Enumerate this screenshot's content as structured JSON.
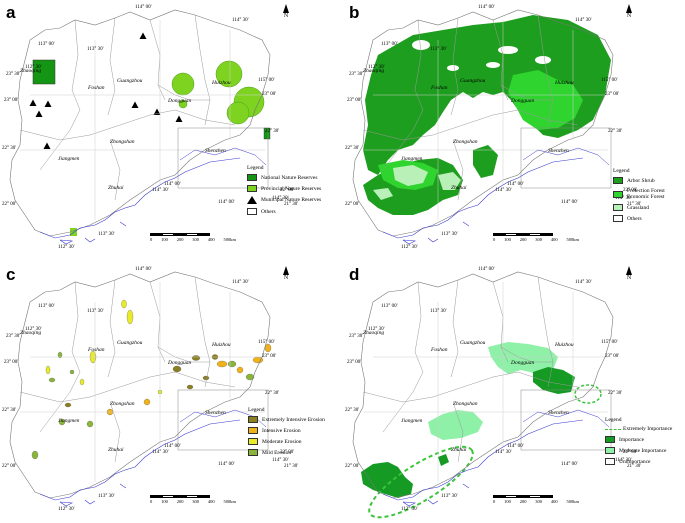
{
  "north": "N",
  "colors": {
    "national_reserve": "#149614",
    "provincial_reserve": "#7ed321",
    "arbor_shrub": "#1e9e1e",
    "protection_forest": "#2fd42f",
    "grassland": "#b8f0b8",
    "extreme_erosion": "#8b7f1f",
    "intensive_erosion": "#f0b21a",
    "moderate_erosion": "#e8ea2a",
    "mild_erosion": "#8bb53a",
    "importance": "#159a24",
    "moderate_importance": "#8ff0a8",
    "extreme_importance_line": "#3cc43c",
    "boundary": "#999999",
    "coastline": "#3a3ad0"
  },
  "scale_ticks": [
    "0",
    "100",
    "200",
    "300",
    "400",
    "500km"
  ],
  "panels": [
    {
      "label": "a",
      "cities": [
        "Zhaoqing",
        "Foshan",
        "Guangzhou",
        "Dongguan",
        "Huizhou",
        "Zhongshan",
        "Shenzhen",
        "Jiangmen",
        "Zhuhai"
      ],
      "coords": [
        "114° 00'",
        "113° 30'",
        "113° 00'",
        "112° 30'",
        "114° 30'",
        "115° 00'",
        "23° 30'",
        "23° 00'",
        "22° 30'",
        "22° 00'",
        "112° 30'",
        "113° 30'",
        "114° 00'",
        "114° 30'",
        "114° 30'",
        "114° 00'",
        "23° 00'",
        "22° 30'",
        "22° 00'",
        "21° 30'"
      ],
      "legend": {
        "title": "Legend",
        "items": [
          {
            "label": "National  Nature  Reserves",
            "kind": "national_reserve"
          },
          {
            "label": "Provincial Nature  Reserves",
            "kind": "provincial_reserve"
          },
          {
            "label": "Municipal  Nature  Reserves",
            "kind": "municipal"
          },
          {
            "label": "Others",
            "kind": "others"
          }
        ]
      }
    },
    {
      "label": "b",
      "cities": [
        "Zhaoqing",
        "Foshan",
        "Guangzhou",
        "Dongguan",
        "Huizhou",
        "Zhongshan",
        "Shenzhen",
        "Jiangmen",
        "Zhuhai"
      ],
      "coords": [
        "114° 00'",
        "113° 30'",
        "113° 00'",
        "112° 30'",
        "114° 30'",
        "115° 00'",
        "23° 30'",
        "23° 00'",
        "22° 30'",
        "22° 00'",
        "112° 30'",
        "113° 30'",
        "114° 00'",
        "114° 30'",
        "114° 30'",
        "114° 00'",
        "23° 00'",
        "22° 30'",
        "22° 00'",
        "21° 30'"
      ],
      "legend": {
        "title": "Legend",
        "items": [
          {
            "label": "Arbor Shrub",
            "kind": "arbor_shrub"
          },
          {
            "label": "Protection Forest  Economic Forest",
            "kind": "protection_forest"
          },
          {
            "label": "Grassland",
            "kind": "grassland"
          },
          {
            "label": "Others",
            "kind": "others"
          }
        ]
      }
    },
    {
      "label": "c",
      "cities": [
        "Zhaoqing",
        "Foshan",
        "Guangzhou",
        "Dongguan",
        "Huizhou",
        "Zhongshan",
        "Shenzhen",
        "Jiangmen",
        "Zhuhai"
      ],
      "coords": [
        "114° 00'",
        "113° 30'",
        "113° 00'",
        "112° 30'",
        "114° 30'",
        "115° 00'",
        "23° 30'",
        "23° 00'",
        "22° 30'",
        "22° 00'",
        "112° 30'",
        "113° 30'",
        "114° 00'",
        "114° 30'",
        "114° 30'",
        "114° 00'",
        "23° 00'",
        "22° 30'",
        "22° 00'",
        "21° 30'"
      ],
      "legend": {
        "title": "Legend",
        "items": [
          {
            "label": "Extremely  Intensive  Erosion",
            "kind": "extreme_erosion"
          },
          {
            "label": "Intensive  Erosion",
            "kind": "intensive_erosion"
          },
          {
            "label": "Moderate  Erosion",
            "kind": "moderate_erosion"
          },
          {
            "label": "Mild  Erosion",
            "kind": "mild_erosion"
          }
        ]
      }
    },
    {
      "label": "d",
      "cities": [
        "Zhaoqing",
        "Foshan",
        "Guangzhou",
        "Dongguan",
        "Huizhou",
        "Zhongshan",
        "Shenzhen",
        "Jiangmen",
        "Zhuhai"
      ],
      "coords": [
        "114° 00'",
        "113° 30'",
        "113° 00'",
        "112° 30'",
        "114° 30'",
        "115° 00'",
        "23° 30'",
        "23° 00'",
        "22° 30'",
        "22° 00'",
        "112° 30'",
        "113° 30'",
        "114° 00'",
        "114° 30'",
        "114° 30'",
        "114° 00'",
        "23° 00'",
        "22° 30'",
        "22° 00'",
        "21° 30'"
      ],
      "legend": {
        "title": "Legend",
        "items": [
          {
            "label": "Extremely Importance",
            "kind": "extreme_importance_line"
          },
          {
            "label": "Importance",
            "kind": "importance"
          },
          {
            "label": "Moderate  Importance",
            "kind": "moderate_importance"
          },
          {
            "label": "Unimportance",
            "kind": "others"
          }
        ]
      }
    }
  ]
}
